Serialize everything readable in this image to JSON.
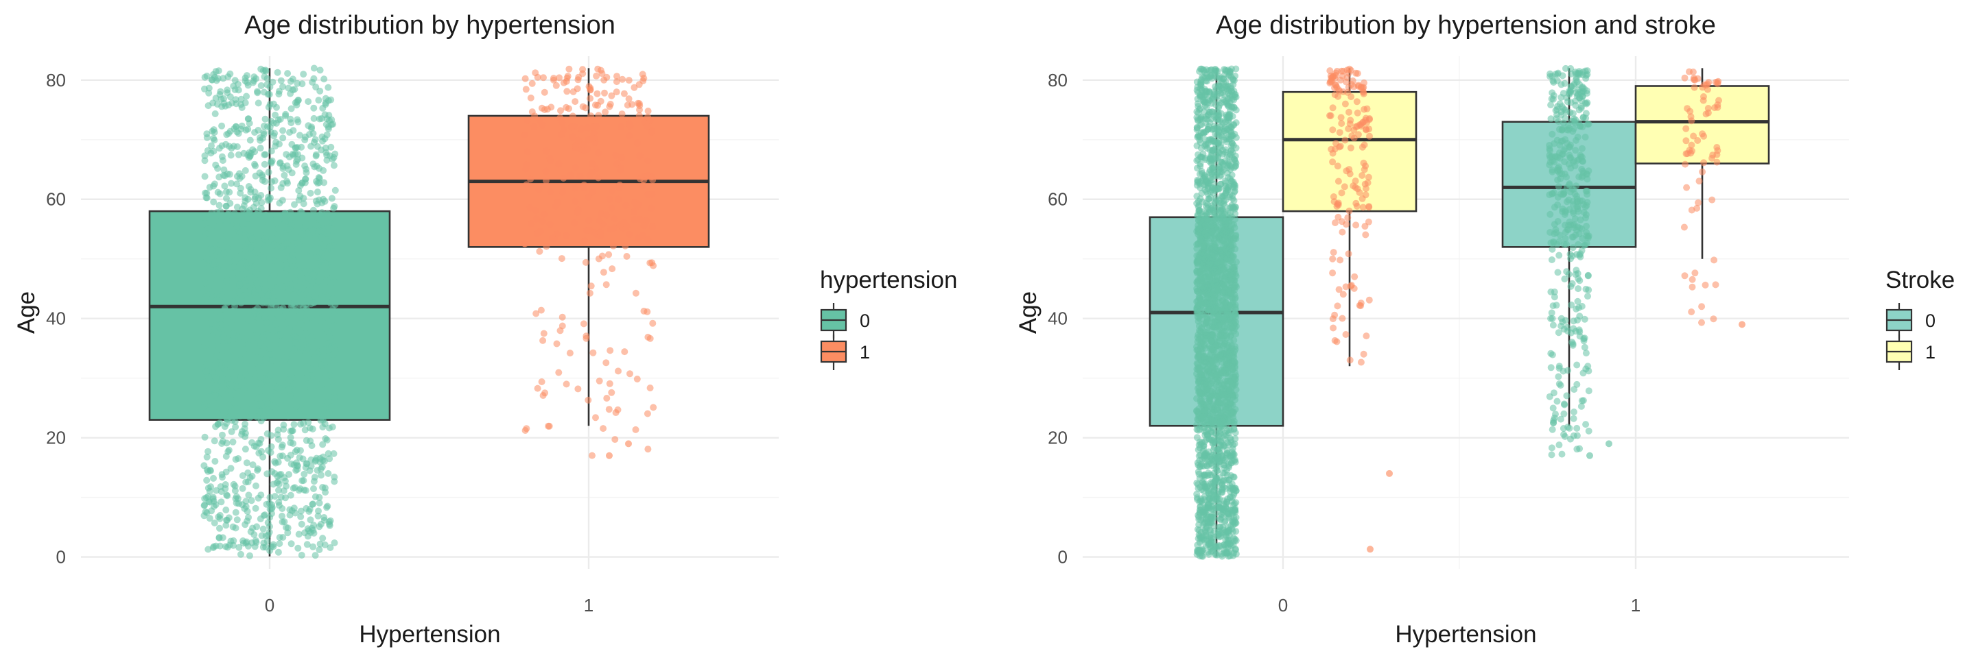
{
  "chart_data": [
    {
      "type": "boxplot",
      "title": "Age distribution by hypertension",
      "xlabel": "Hypertension",
      "ylabel": "Age",
      "ylim": [
        -2,
        84
      ],
      "yticks": [
        0,
        20,
        40,
        60,
        80
      ],
      "categories": [
        "0",
        "1"
      ],
      "grid": true,
      "legend": {
        "title": "hypertension",
        "placement": "right",
        "items": [
          {
            "label": "0",
            "color": "#66c2a5"
          },
          {
            "label": "1",
            "color": "#fc8d62"
          }
        ]
      },
      "boxes": [
        {
          "category": "0",
          "group": "0",
          "color": "#66c2a5",
          "q1": 23,
          "median": 42,
          "q3": 58,
          "whisker_low": 0.08,
          "whisker_high": 82
        },
        {
          "category": "1",
          "group": "1",
          "color": "#fc8d62",
          "q1": 52,
          "median": 63,
          "q3": 74,
          "whisker_low": 22,
          "whisker_high": 82
        }
      ],
      "outliers": [
        {
          "category": "1",
          "values": [
            19,
            17
          ]
        }
      ],
      "jitter": [
        {
          "category": "0",
          "color": "#66c2a5",
          "y_range": [
            0.08,
            82
          ],
          "density": "dense"
        },
        {
          "category": "1",
          "color": "#fc8d62",
          "y_range": [
            17,
            82
          ],
          "density": "moderate"
        }
      ]
    },
    {
      "type": "boxplot",
      "title": "Age distribution by hypertension and stroke",
      "xlabel": "Hypertension",
      "ylabel": "Age",
      "ylim": [
        -2,
        84
      ],
      "yticks": [
        0,
        20,
        40,
        60,
        80
      ],
      "categories": [
        "0",
        "1"
      ],
      "grid": true,
      "legend": {
        "title": "Stroke",
        "placement": "right",
        "items": [
          {
            "label": "0",
            "color": "#8dd3c7"
          },
          {
            "label": "1",
            "color": "#ffffb3"
          }
        ]
      },
      "boxes": [
        {
          "category": "0",
          "group": "0",
          "color": "#8dd3c7",
          "q1": 22,
          "median": 41,
          "q3": 57,
          "whisker_low": 0.08,
          "whisker_high": 82
        },
        {
          "category": "0",
          "group": "1",
          "color": "#ffffb3",
          "q1": 58,
          "median": 70,
          "q3": 78,
          "whisker_low": 32,
          "whisker_high": 82
        },
        {
          "category": "1",
          "group": "0",
          "color": "#8dd3c7",
          "q1": 52,
          "median": 62,
          "q3": 73,
          "whisker_low": 22,
          "whisker_high": 82
        },
        {
          "category": "1",
          "group": "1",
          "color": "#ffffb3",
          "q1": 66,
          "median": 73,
          "q3": 79,
          "whisker_low": 50,
          "whisker_high": 82
        }
      ],
      "outliers": [
        {
          "category": "0",
          "group": "1",
          "values": [
            14,
            1.3
          ]
        },
        {
          "category": "1",
          "group": "0",
          "values": [
            19,
            17
          ]
        },
        {
          "category": "1",
          "group": "1",
          "values": [
            39
          ]
        }
      ],
      "jitter": [
        {
          "category": "0",
          "group": "0",
          "color": "#66c2a5",
          "y_range": [
            0.08,
            82
          ],
          "density": "very dense"
        },
        {
          "category": "0",
          "group": "1",
          "color": "#fc8d62",
          "y_range": [
            32,
            82
          ],
          "density": "moderate"
        },
        {
          "category": "1",
          "group": "0",
          "color": "#66c2a5",
          "y_range": [
            17,
            82
          ],
          "density": "dense"
        },
        {
          "category": "1",
          "group": "1",
          "color": "#fc8d62",
          "y_range": [
            39,
            82
          ],
          "density": "sparse"
        }
      ]
    }
  ]
}
